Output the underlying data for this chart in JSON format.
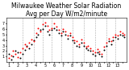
{
  "title": "Milwaukee Weather Solar Radiation",
  "subtitle": "Avg per Day W/m2/minute",
  "background_color": "#ffffff",
  "grid_color": "#aaaaaa",
  "ylim": [
    0,
    8
  ],
  "yticks": [
    1,
    2,
    3,
    4,
    5,
    6,
    7
  ],
  "ytick_labels": [
    "1",
    "2",
    "3",
    "4",
    "5",
    "6",
    "7"
  ],
  "num_points": 52,
  "red_series": [
    0.8,
    1.2,
    2.1,
    1.5,
    0.9,
    1.8,
    2.5,
    3.2,
    2.8,
    3.5,
    4.1,
    3.8,
    5.2,
    6.1,
    5.5,
    6.8,
    7.2,
    6.5,
    5.8,
    6.2,
    7.0,
    6.4,
    5.9,
    5.2,
    6.0,
    5.5,
    4.8,
    5.3,
    4.5,
    4.0,
    3.8,
    3.2,
    4.1,
    3.5,
    2.8,
    3.0,
    2.5,
    2.0,
    1.8,
    2.3,
    1.9,
    1.5,
    2.8,
    3.5,
    4.2,
    3.8,
    4.5,
    5.0,
    4.8,
    5.5,
    5.2,
    4.9
  ],
  "black_series": [
    1.5,
    0.5,
    1.0,
    2.0,
    1.8,
    0.7,
    1.5,
    2.2,
    3.0,
    2.5,
    3.2,
    4.0,
    4.5,
    5.0,
    5.8,
    6.0,
    6.5,
    5.5,
    5.0,
    5.8,
    6.2,
    5.9,
    5.2,
    4.8,
    5.5,
    4.9,
    4.2,
    4.8,
    4.0,
    3.5,
    3.0,
    2.8,
    3.5,
    3.0,
    2.5,
    2.2,
    2.0,
    1.5,
    1.2,
    1.8,
    1.5,
    1.0,
    2.2,
    3.0,
    3.8,
    3.2,
    4.0,
    4.5,
    4.2,
    5.0,
    4.8,
    4.5
  ],
  "vline_positions": [
    6,
    11,
    15,
    19,
    23,
    28,
    33,
    38,
    43,
    47
  ],
  "title_fontsize": 5.5,
  "tick_fontsize": 3.5,
  "dot_size": 2
}
